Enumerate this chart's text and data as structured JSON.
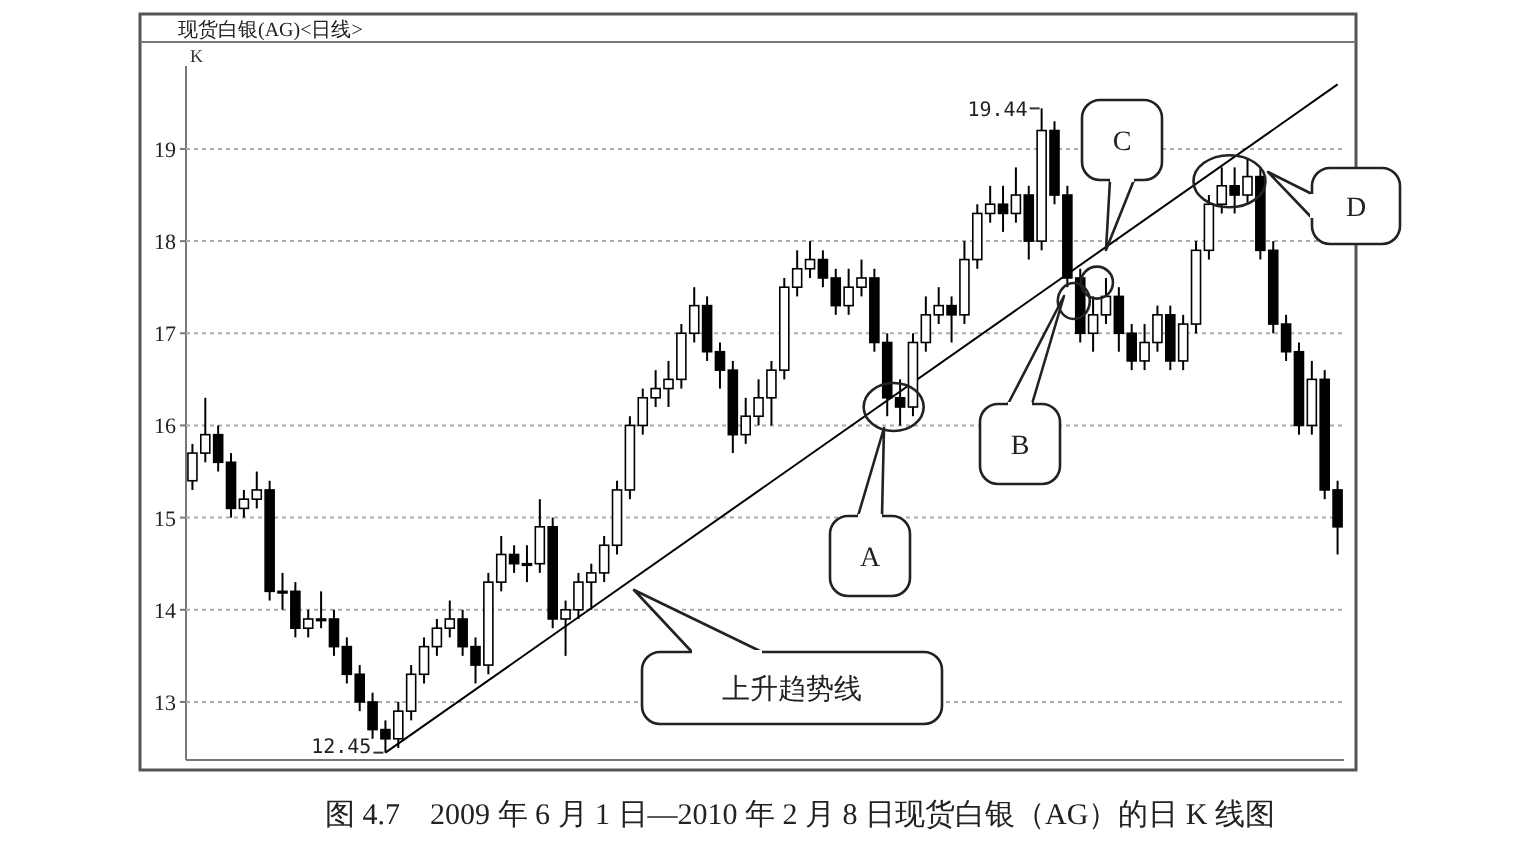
{
  "chart_data": {
    "type": "candlestick",
    "title": "现货白银(AG)<日线>",
    "ylabel": "K",
    "categories": [
      null,
      null,
      null,
      null,
      null,
      null,
      null,
      null,
      null,
      null,
      null,
      null,
      null,
      null,
      null,
      null,
      null,
      null,
      null,
      null,
      null,
      null,
      null,
      null,
      null,
      null,
      null,
      null,
      null,
      null,
      null,
      null,
      null,
      null,
      null,
      null,
      null,
      null,
      null,
      null,
      null,
      null,
      null,
      null,
      null,
      null,
      null,
      null,
      null,
      null,
      null,
      null,
      null,
      null,
      null,
      null,
      null,
      null,
      null,
      null,
      null,
      null,
      null,
      null,
      null,
      null,
      null,
      null,
      null,
      null,
      null,
      null,
      null,
      null,
      null,
      null,
      null,
      null,
      null,
      null,
      null,
      null,
      null,
      null,
      null,
      null,
      null,
      null,
      null,
      null
    ],
    "series": [
      {
        "type": "candlestick",
        "color": "#000000",
        "ohlc": [
          [
            15.4,
            15.8,
            15.3,
            15.7
          ],
          [
            15.7,
            16.3,
            15.6,
            15.9
          ],
          [
            15.9,
            16.0,
            15.5,
            15.6
          ],
          [
            15.6,
            15.7,
            15.0,
            15.1
          ],
          [
            15.1,
            15.3,
            15.0,
            15.2
          ],
          [
            15.2,
            15.5,
            15.1,
            15.3
          ],
          [
            15.3,
            15.4,
            14.1,
            14.2
          ],
          [
            14.2,
            14.4,
            14.0,
            14.2
          ],
          [
            14.2,
            14.3,
            13.7,
            13.8
          ],
          [
            13.8,
            14.0,
            13.7,
            13.9
          ],
          [
            13.9,
            14.2,
            13.8,
            13.9
          ],
          [
            13.9,
            14.0,
            13.5,
            13.6
          ],
          [
            13.6,
            13.7,
            13.2,
            13.3
          ],
          [
            13.3,
            13.4,
            12.9,
            13.0
          ],
          [
            13.0,
            13.1,
            12.6,
            12.7
          ],
          [
            12.7,
            12.8,
            12.45,
            12.6
          ],
          [
            12.6,
            13.0,
            12.5,
            12.9
          ],
          [
            12.9,
            13.4,
            12.8,
            13.3
          ],
          [
            13.3,
            13.7,
            13.2,
            13.6
          ],
          [
            13.6,
            13.9,
            13.5,
            13.8
          ],
          [
            13.8,
            14.1,
            13.7,
            13.9
          ],
          [
            13.9,
            14.0,
            13.5,
            13.6
          ],
          [
            13.6,
            13.7,
            13.2,
            13.4
          ],
          [
            13.4,
            14.4,
            13.3,
            14.3
          ],
          [
            14.3,
            14.8,
            14.2,
            14.6
          ],
          [
            14.6,
            14.7,
            14.4,
            14.5
          ],
          [
            14.5,
            14.7,
            14.3,
            14.5
          ],
          [
            14.5,
            15.2,
            14.4,
            14.9
          ],
          [
            14.9,
            15.0,
            13.8,
            13.9
          ],
          [
            13.9,
            14.1,
            13.5,
            14.0
          ],
          [
            14.0,
            14.4,
            13.9,
            14.3
          ],
          [
            14.3,
            14.5,
            14.0,
            14.4
          ],
          [
            14.4,
            14.8,
            14.3,
            14.7
          ],
          [
            14.7,
            15.4,
            14.6,
            15.3
          ],
          [
            15.3,
            16.1,
            15.2,
            16.0
          ],
          [
            16.0,
            16.4,
            15.9,
            16.3
          ],
          [
            16.3,
            16.6,
            16.2,
            16.4
          ],
          [
            16.4,
            16.7,
            16.2,
            16.5
          ],
          [
            16.5,
            17.1,
            16.4,
            17.0
          ],
          [
            17.0,
            17.5,
            16.9,
            17.3
          ],
          [
            17.3,
            17.4,
            16.7,
            16.8
          ],
          [
            16.8,
            16.9,
            16.4,
            16.6
          ],
          [
            16.6,
            16.7,
            15.7,
            15.9
          ],
          [
            15.9,
            16.3,
            15.8,
            16.1
          ],
          [
            16.1,
            16.5,
            16.0,
            16.3
          ],
          [
            16.3,
            16.7,
            16.0,
            16.6
          ],
          [
            16.6,
            17.6,
            16.5,
            17.5
          ],
          [
            17.5,
            17.9,
            17.4,
            17.7
          ],
          [
            17.7,
            18.0,
            17.6,
            17.8
          ],
          [
            17.8,
            17.9,
            17.5,
            17.6
          ],
          [
            17.6,
            17.7,
            17.2,
            17.3
          ],
          [
            17.3,
            17.7,
            17.2,
            17.5
          ],
          [
            17.5,
            17.8,
            17.4,
            17.6
          ],
          [
            17.6,
            17.7,
            16.8,
            16.9
          ],
          [
            16.9,
            17.0,
            16.1,
            16.3
          ],
          [
            16.3,
            16.5,
            16.0,
            16.2
          ],
          [
            16.2,
            17.0,
            16.1,
            16.9
          ],
          [
            16.9,
            17.4,
            16.8,
            17.2
          ],
          [
            17.2,
            17.5,
            17.1,
            17.3
          ],
          [
            17.3,
            17.4,
            16.9,
            17.2
          ],
          [
            17.2,
            18.0,
            17.1,
            17.8
          ],
          [
            17.8,
            18.4,
            17.7,
            18.3
          ],
          [
            18.3,
            18.6,
            18.2,
            18.4
          ],
          [
            18.4,
            18.6,
            18.1,
            18.3
          ],
          [
            18.3,
            18.8,
            18.2,
            18.5
          ],
          [
            18.5,
            18.6,
            17.8,
            18.0
          ],
          [
            18.0,
            19.44,
            17.9,
            19.2
          ],
          [
            19.2,
            19.3,
            18.4,
            18.5
          ],
          [
            18.5,
            18.6,
            17.5,
            17.6
          ],
          [
            17.6,
            17.7,
            16.9,
            17.0
          ],
          [
            17.0,
            17.4,
            16.8,
            17.2
          ],
          [
            17.2,
            17.6,
            17.1,
            17.4
          ],
          [
            17.4,
            17.5,
            16.8,
            17.0
          ],
          [
            17.0,
            17.1,
            16.6,
            16.7
          ],
          [
            16.7,
            17.1,
            16.6,
            16.9
          ],
          [
            16.9,
            17.3,
            16.8,
            17.2
          ],
          [
            17.2,
            17.3,
            16.6,
            16.7
          ],
          [
            16.7,
            17.2,
            16.6,
            17.1
          ],
          [
            17.1,
            18.0,
            17.0,
            17.9
          ],
          [
            17.9,
            18.5,
            17.8,
            18.4
          ],
          [
            18.4,
            18.8,
            18.3,
            18.6
          ],
          [
            18.6,
            18.8,
            18.3,
            18.5
          ],
          [
            18.5,
            18.9,
            18.4,
            18.7
          ],
          [
            18.7,
            18.8,
            17.8,
            17.9
          ],
          [
            17.9,
            18.0,
            17.0,
            17.1
          ],
          [
            17.1,
            17.2,
            16.7,
            16.8
          ],
          [
            16.8,
            16.9,
            15.9,
            16.0
          ],
          [
            16.0,
            16.7,
            15.9,
            16.5
          ],
          [
            16.5,
            16.6,
            15.2,
            15.3
          ],
          [
            15.3,
            15.4,
            14.6,
            14.9
          ]
        ]
      },
      {
        "type": "line",
        "color": "#000000",
        "values": [
          null,
          null,
          null,
          null,
          null,
          null,
          null,
          null,
          null,
          null,
          null,
          null,
          null,
          null,
          null,
          12.45,
          null,
          null,
          null,
          null,
          null,
          null,
          null,
          null,
          null,
          null,
          null,
          null,
          null,
          null,
          null,
          null,
          null,
          null,
          null,
          null,
          null,
          null,
          null,
          null,
          null,
          null,
          null,
          null,
          null,
          null,
          null,
          null,
          null,
          null,
          null,
          null,
          null,
          null,
          null,
          null,
          null,
          null,
          null,
          null,
          null,
          null,
          null,
          null,
          null,
          null,
          null,
          null,
          null,
          null,
          null,
          null,
          null,
          null,
          null,
          null,
          null,
          null,
          null,
          null,
          null,
          null,
          null,
          null,
          null,
          null,
          null,
          null,
          null,
          19.7
        ]
      }
    ],
    "ylim": [
      12.37,
      19.9
    ],
    "yticks": [
      13,
      14,
      15,
      16,
      17,
      18,
      19
    ],
    "grid": "y",
    "tick_labels": "y",
    "annotations": [
      "12.45",
      "19.44",
      "上升趋势线",
      "A",
      "B",
      "C",
      "D",
      "图 4.7　2009 年 6 月 1 日—2010 年 2 月 8 日现货白银（AG）的日 K 线图"
    ]
  }
}
